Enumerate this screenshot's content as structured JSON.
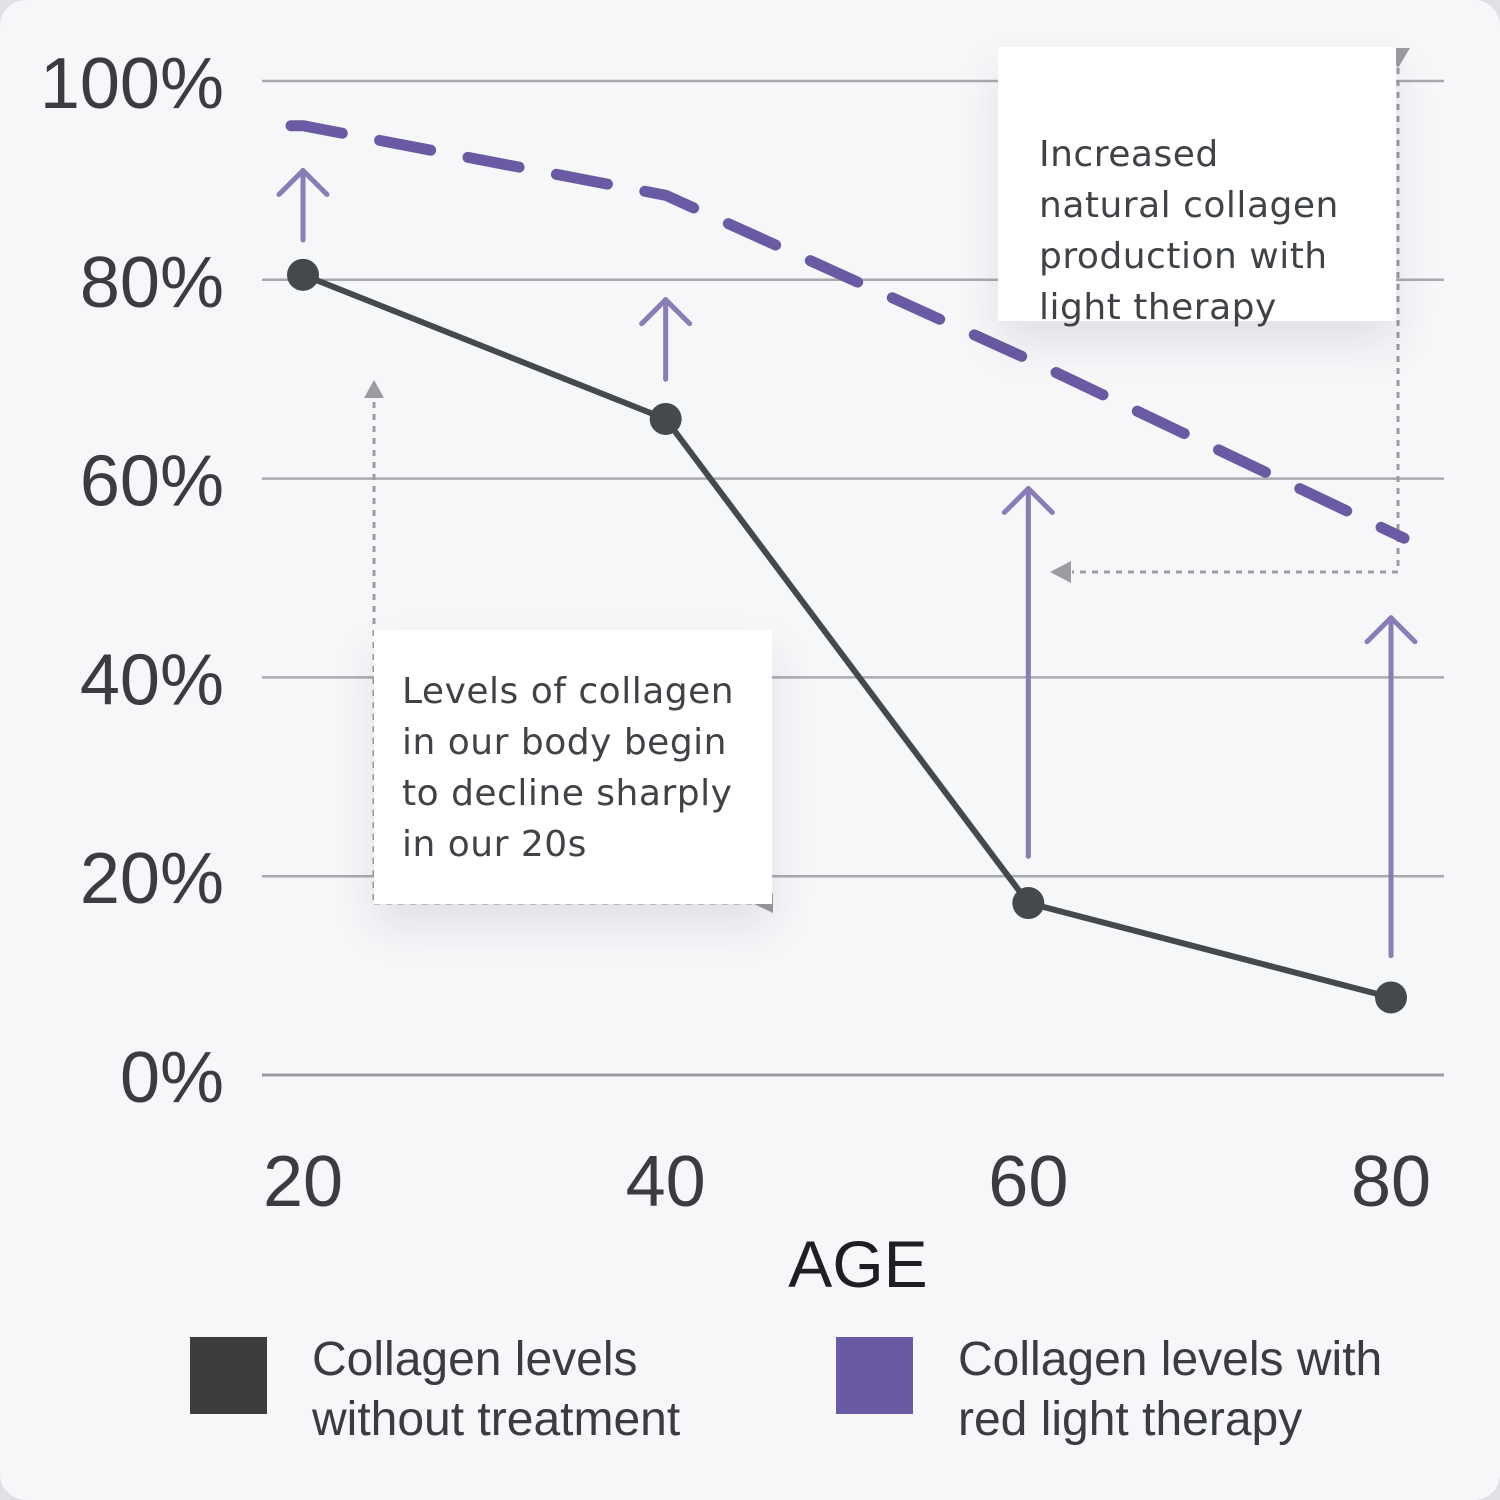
{
  "chart_data": {
    "type": "line",
    "x": [
      20,
      40,
      60,
      80
    ],
    "xlabel": "AGE",
    "ylabel": "",
    "xlim": [
      20,
      80
    ],
    "ylim": [
      0,
      100
    ],
    "x_ticks": [
      "20",
      "40",
      "60",
      "80"
    ],
    "y_ticks": [
      "0%",
      "20%",
      "40%",
      "60%",
      "80%",
      "100%"
    ],
    "grid": "horizontal",
    "series": [
      {
        "name": "Collagen levels without treatment",
        "style": "solid-with-markers",
        "color": "#46494c",
        "values": [
          80.5,
          66,
          17.3,
          7.8
        ]
      },
      {
        "name": "Collagen levels with red light therapy",
        "style": "dashed",
        "color": "#6a5aa3",
        "values": [
          95.5,
          88.5,
          72,
          54
        ]
      }
    ],
    "increase_arrows": [
      {
        "x": 20,
        "from": 84,
        "to": 91
      },
      {
        "x": 40,
        "from": 70,
        "to": 78
      },
      {
        "x": 60,
        "from": 22,
        "to": 59
      },
      {
        "x": 80,
        "from": 12,
        "to": 46
      }
    ],
    "annotations": [
      {
        "id": "top",
        "lines": [
          "Increased",
          "natural collagen",
          "production with",
          "light therapy"
        ]
      },
      {
        "id": "left",
        "lines": [
          "Levels of collagen",
          "in our body begin",
          "to decline sharply",
          "in our 20s"
        ]
      }
    ],
    "legend_position": "bottom"
  },
  "legend": [
    {
      "lines": [
        "Collagen levels",
        "without treatment"
      ],
      "color": "#3f3c3c"
    },
    {
      "lines": [
        "Collagen levels with",
        "red light therapy"
      ],
      "color": "#6a5aa3"
    }
  ]
}
